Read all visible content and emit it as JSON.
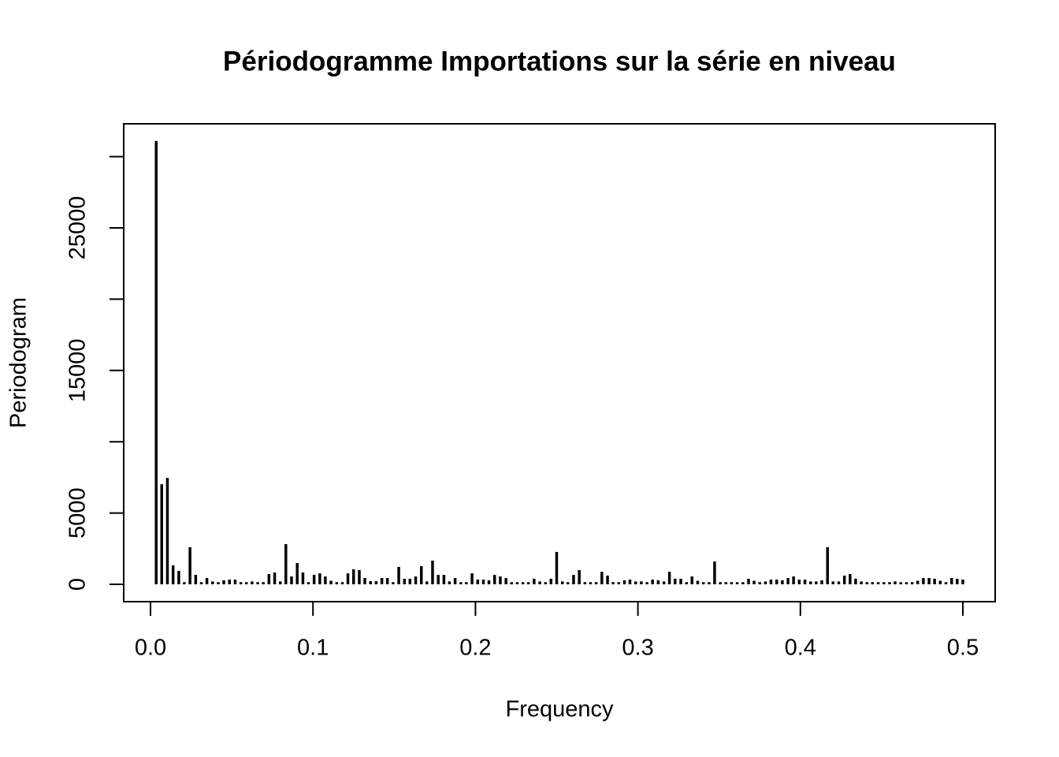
{
  "chart_data": {
    "type": "bar",
    "title": "Périodogramme Importations sur la série en niveau",
    "xlabel": "Frequency",
    "ylabel": "Periodogram",
    "x": [
      0.0035,
      0.0069,
      0.0104,
      0.0139,
      0.0174,
      0.0208,
      0.0243,
      0.0278,
      0.0313,
      0.0347,
      0.0382,
      0.0417,
      0.0451,
      0.0486,
      0.0521,
      0.0556,
      0.059,
      0.0625,
      0.066,
      0.0694,
      0.0729,
      0.0764,
      0.0799,
      0.0833,
      0.0868,
      0.0903,
      0.0938,
      0.0972,
      0.1007,
      0.1042,
      0.1076,
      0.1111,
      0.1146,
      0.1181,
      0.1215,
      0.125,
      0.1285,
      0.1319,
      0.1354,
      0.1389,
      0.1424,
      0.1458,
      0.1493,
      0.1528,
      0.1563,
      0.1597,
      0.1632,
      0.1667,
      0.1701,
      0.1736,
      0.1771,
      0.1806,
      0.184,
      0.1875,
      0.191,
      0.1944,
      0.1979,
      0.2014,
      0.2049,
      0.2083,
      0.2118,
      0.2153,
      0.2188,
      0.2222,
      0.2257,
      0.2292,
      0.2326,
      0.2361,
      0.2396,
      0.2431,
      0.2465,
      0.25,
      0.2535,
      0.2569,
      0.2604,
      0.2639,
      0.2674,
      0.2708,
      0.2743,
      0.2778,
      0.2813,
      0.2847,
      0.2882,
      0.2917,
      0.2951,
      0.2986,
      0.3021,
      0.3056,
      0.309,
      0.3125,
      0.316,
      0.3194,
      0.3229,
      0.3264,
      0.3299,
      0.3333,
      0.3368,
      0.3403,
      0.3438,
      0.3472,
      0.3507,
      0.3542,
      0.3576,
      0.3611,
      0.3646,
      0.3681,
      0.3715,
      0.375,
      0.3785,
      0.3819,
      0.3854,
      0.3889,
      0.3924,
      0.3958,
      0.3993,
      0.4028,
      0.4063,
      0.4097,
      0.4132,
      0.4167,
      0.4201,
      0.4236,
      0.4271,
      0.4306,
      0.434,
      0.4375,
      0.441,
      0.4444,
      0.4479,
      0.4514,
      0.4549,
      0.4583,
      0.4618,
      0.4653,
      0.4688,
      0.4722,
      0.4757,
      0.4792,
      0.4826,
      0.4861,
      0.4896,
      0.4931,
      0.4965,
      0.5
    ],
    "values": [
      31100,
      7020,
      7460,
      1330,
      940,
      150,
      2600,
      660,
      150,
      440,
      200,
      150,
      280,
      330,
      330,
      150,
      150,
      200,
      150,
      150,
      720,
      830,
      200,
      2820,
      550,
      1490,
      830,
      150,
      660,
      770,
      550,
      250,
      150,
      150,
      770,
      1050,
      1000,
      440,
      220,
      220,
      440,
      440,
      150,
      1220,
      390,
      390,
      550,
      1270,
      200,
      1660,
      660,
      660,
      200,
      440,
      150,
      150,
      770,
      330,
      330,
      280,
      660,
      550,
      440,
      150,
      150,
      150,
      150,
      390,
      200,
      150,
      390,
      2270,
      200,
      150,
      660,
      1000,
      150,
      150,
      150,
      880,
      610,
      150,
      150,
      280,
      330,
      200,
      200,
      150,
      330,
      280,
      200,
      880,
      390,
      390,
      150,
      550,
      250,
      150,
      150,
      1600,
      150,
      150,
      150,
      150,
      150,
      390,
      250,
      150,
      200,
      330,
      330,
      280,
      440,
      550,
      330,
      330,
      200,
      200,
      280,
      2600,
      200,
      200,
      610,
      720,
      390,
      200,
      150,
      150,
      150,
      150,
      150,
      200,
      150,
      150,
      150,
      250,
      440,
      440,
      390,
      250,
      150,
      440,
      390,
      330
    ],
    "color": "#000000",
    "xlim": [
      -0.0165,
      0.5199
    ],
    "ylim": [
      -1217,
      32300
    ],
    "xticks": [
      {
        "value": 0,
        "label": "0.0"
      },
      0.1,
      0.2,
      0.3,
      0.4,
      0.5
    ],
    "yticks": [
      0,
      5000,
      10000,
      15000,
      20000,
      25000,
      30000
    ],
    "grid": false
  }
}
